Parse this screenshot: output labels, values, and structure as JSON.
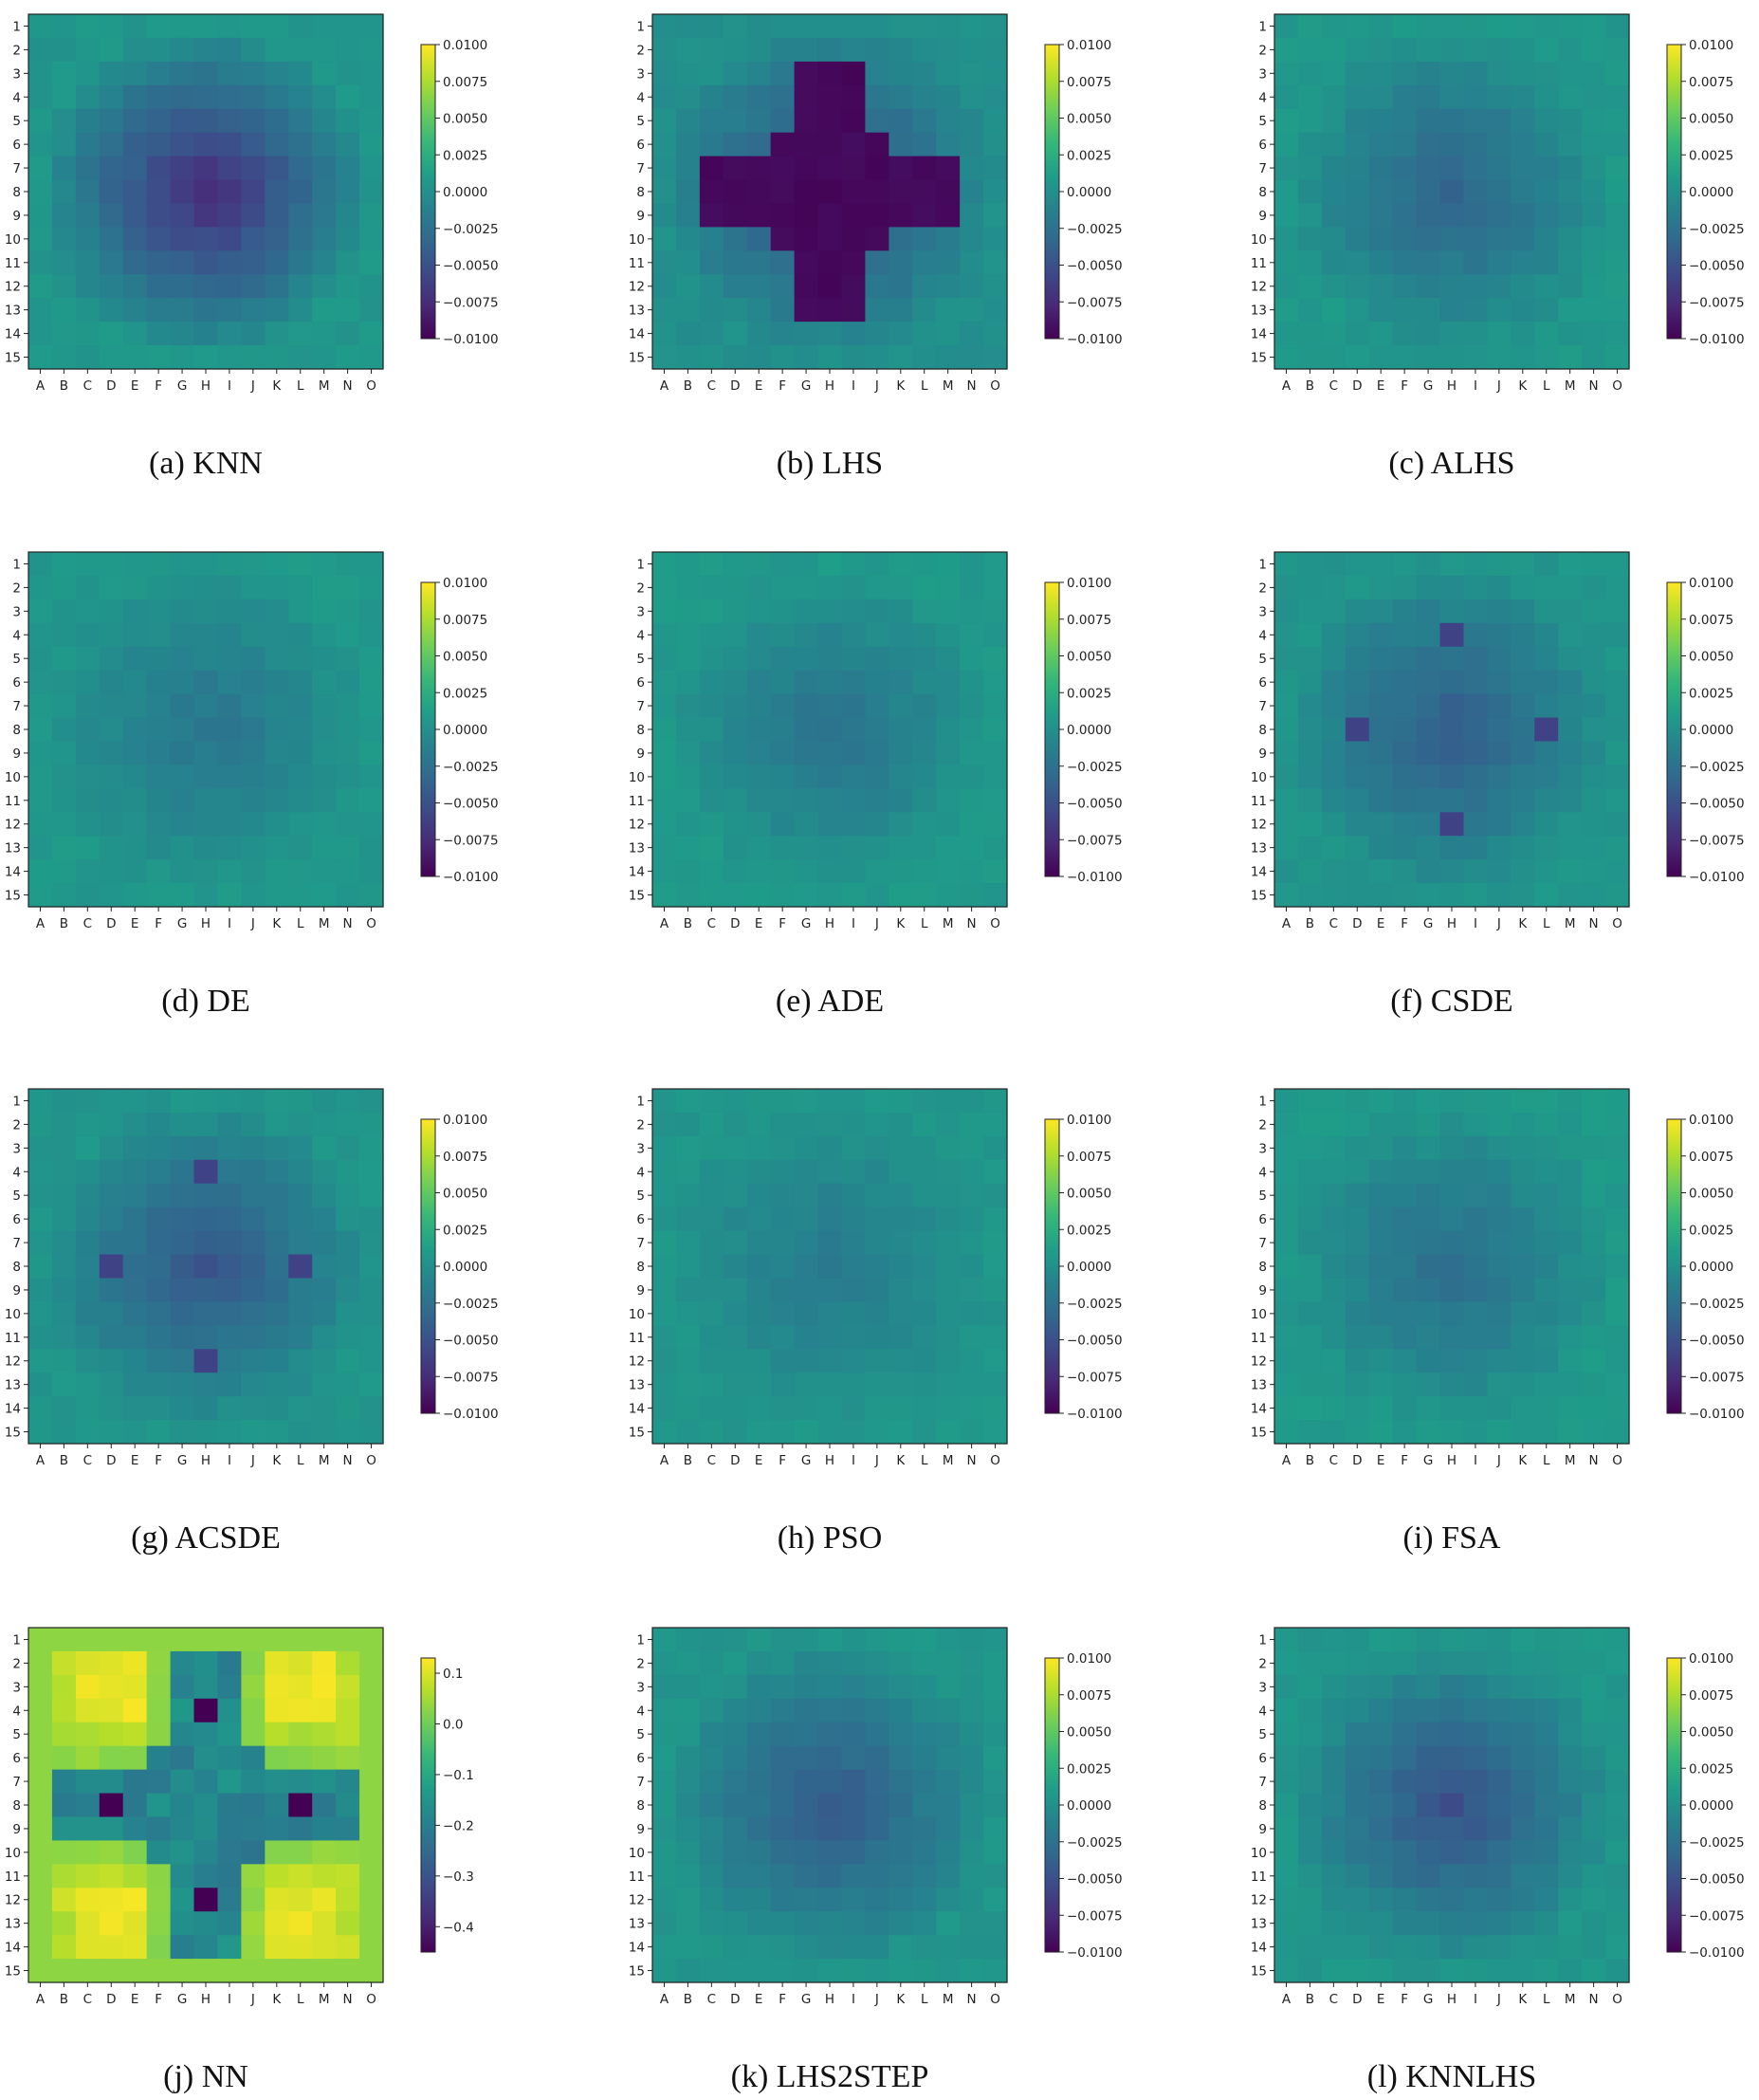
{
  "chart_data": {
    "type": "heatmap",
    "grid": false,
    "colormap": "viridis",
    "rows": [
      "1",
      "2",
      "3",
      "4",
      "5",
      "6",
      "7",
      "8",
      "9",
      "10",
      "11",
      "12",
      "13",
      "14",
      "15"
    ],
    "cols": [
      "A",
      "B",
      "C",
      "D",
      "E",
      "F",
      "G",
      "H",
      "I",
      "J",
      "K",
      "L",
      "M",
      "N",
      "O"
    ],
    "panels": [
      {
        "caption": "(a) KNN",
        "vmin": -0.01,
        "vmax": 0.01,
        "colorbar_ticks": [
          "0.0100",
          "0.0075",
          "0.0050",
          "0.0025",
          "0.0000",
          "−0.0025",
          "−0.0050",
          "−0.0075",
          "−0.0100"
        ],
        "pattern": {
          "kind": "radial",
          "center_value": -0.0075,
          "edge_value": 0.0005,
          "extra": [],
          "seed": 1
        }
      },
      {
        "caption": "(b) LHS",
        "vmin": -0.01,
        "vmax": 0.01,
        "colorbar_ticks": [
          "0.0100",
          "0.0075",
          "0.0050",
          "0.0025",
          "0.0000",
          "−0.0025",
          "−0.0050",
          "−0.0075",
          "−0.0100"
        ],
        "pattern": {
          "kind": "cross",
          "center_value": -0.0098,
          "edge_value": 0.0,
          "extra": [],
          "seed": 2
        }
      },
      {
        "caption": "(c) ALHS",
        "vmin": -0.01,
        "vmax": 0.01,
        "colorbar_ticks": [
          "0.0100",
          "0.0075",
          "0.0050",
          "0.0025",
          "0.0000",
          "−0.0025",
          "−0.0050",
          "−0.0075",
          "−0.0100"
        ],
        "pattern": {
          "kind": "radial",
          "center_value": -0.0035,
          "edge_value": 0.0006,
          "extra": [],
          "seed": 3
        }
      },
      {
        "caption": "(d) DE",
        "vmin": -0.01,
        "vmax": 0.01,
        "colorbar_ticks": [
          "0.0100",
          "0.0075",
          "0.0050",
          "0.0025",
          "0.0000",
          "−0.0025",
          "−0.0050",
          "−0.0075",
          "−0.0100"
        ],
        "pattern": {
          "kind": "radial",
          "center_value": -0.0022,
          "edge_value": 0.0006,
          "extra": [],
          "seed": 4
        }
      },
      {
        "caption": "(e) ADE",
        "vmin": -0.01,
        "vmax": 0.01,
        "colorbar_ticks": [
          "0.0100",
          "0.0075",
          "0.0050",
          "0.0025",
          "0.0000",
          "−0.0025",
          "−0.0050",
          "−0.0075",
          "−0.0100"
        ],
        "pattern": {
          "kind": "radial",
          "center_value": -0.0024,
          "edge_value": 0.0007,
          "extra": [],
          "seed": 5
        }
      },
      {
        "caption": "(f) CSDE",
        "vmin": -0.01,
        "vmax": 0.01,
        "colorbar_ticks": [
          "0.0100",
          "0.0075",
          "0.0050",
          "0.0025",
          "0.0000",
          "−0.0025",
          "−0.0050",
          "−0.0075",
          "−0.0100"
        ],
        "pattern": {
          "kind": "radial",
          "center_value": -0.0042,
          "edge_value": 0.0004,
          "extra": [
            {
              "row": 4,
              "col": 8,
              "value": -0.006
            },
            {
              "row": 12,
              "col": 8,
              "value": -0.006
            },
            {
              "row": 8,
              "col": 4,
              "value": -0.006
            },
            {
              "row": 8,
              "col": 12,
              "value": -0.006
            }
          ],
          "seed": 6
        }
      },
      {
        "caption": "(g) ACSDE",
        "vmin": -0.01,
        "vmax": 0.01,
        "colorbar_ticks": [
          "0.0100",
          "0.0075",
          "0.0050",
          "0.0025",
          "0.0000",
          "−0.0025",
          "−0.0050",
          "−0.0075",
          "−0.0100"
        ],
        "pattern": {
          "kind": "radial",
          "center_value": -0.0046,
          "edge_value": 0.0004,
          "extra": [
            {
              "row": 4,
              "col": 8,
              "value": -0.006
            },
            {
              "row": 12,
              "col": 8,
              "value": -0.006
            },
            {
              "row": 8,
              "col": 4,
              "value": -0.006
            },
            {
              "row": 8,
              "col": 12,
              "value": -0.006
            }
          ],
          "seed": 7
        }
      },
      {
        "caption": "(h) PSO",
        "vmin": -0.01,
        "vmax": 0.01,
        "colorbar_ticks": [
          "0.0100",
          "0.0075",
          "0.0050",
          "0.0025",
          "0.0000",
          "−0.0025",
          "−0.0050",
          "−0.0075",
          "−0.0100"
        ],
        "pattern": {
          "kind": "radial",
          "center_value": -0.0018,
          "edge_value": 0.0005,
          "extra": [],
          "seed": 8
        }
      },
      {
        "caption": "(i) FSA",
        "vmin": -0.01,
        "vmax": 0.01,
        "colorbar_ticks": [
          "0.0100",
          "0.0075",
          "0.0050",
          "0.0025",
          "0.0000",
          "−0.0025",
          "−0.0050",
          "−0.0075",
          "−0.0100"
        ],
        "pattern": {
          "kind": "radial",
          "center_value": -0.0028,
          "edge_value": 0.0007,
          "extra": [],
          "seed": 9
        }
      },
      {
        "caption": "(j) NN",
        "vmin": -0.45,
        "vmax": 0.13,
        "colorbar_ticks": [
          "0.1",
          "0.0",
          "−0.1",
          "−0.2",
          "−0.3",
          "−0.4"
        ],
        "pattern": {
          "kind": "nn",
          "center_value": -0.2,
          "edge_value": 0.03,
          "extra": [
            {
              "row": 4,
              "col": 8,
              "value": -0.45
            },
            {
              "row": 12,
              "col": 8,
              "value": -0.45
            },
            {
              "row": 8,
              "col": 4,
              "value": -0.45
            },
            {
              "row": 8,
              "col": 12,
              "value": -0.45
            }
          ],
          "seed": 10
        }
      },
      {
        "caption": "(k) LHS2STEP",
        "vmin": -0.01,
        "vmax": 0.01,
        "colorbar_ticks": [
          "0.0100",
          "0.0075",
          "0.0050",
          "0.0025",
          "0.0000",
          "−0.0025",
          "−0.0050",
          "−0.0075",
          "−0.0100"
        ],
        "pattern": {
          "kind": "radial",
          "center_value": -0.0045,
          "edge_value": 0.0004,
          "extra": [],
          "seed": 11
        }
      },
      {
        "caption": "(l) KNNLHS",
        "vmin": -0.01,
        "vmax": 0.01,
        "colorbar_ticks": [
          "0.0100",
          "0.0075",
          "0.0050",
          "0.0025",
          "0.0000",
          "−0.0025",
          "−0.0050",
          "−0.0075",
          "−0.0100"
        ],
        "pattern": {
          "kind": "radial",
          "center_value": -0.005,
          "edge_value": 0.0005,
          "extra": [],
          "seed": 12
        }
      }
    ]
  }
}
